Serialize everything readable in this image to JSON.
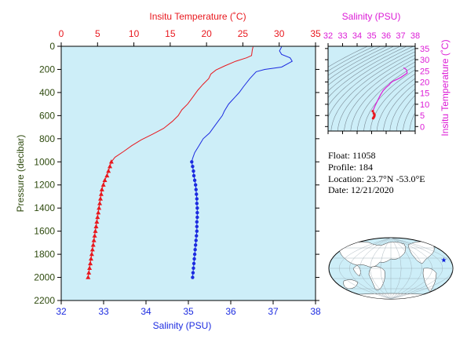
{
  "colors": {
    "temperature": "#e8181e",
    "salinity": "#1c2be0",
    "inset": "#dc1bd6",
    "axis_dark": "#2e4a0e",
    "panel_bg": "#cdeef8",
    "contour": "#7b8b96"
  },
  "chart_data": [
    {
      "type": "line",
      "title": "",
      "y_axis": {
        "label": "Pressure (decibar)",
        "range": [
          0,
          2200
        ],
        "inverted": true,
        "ticks": [
          0,
          200,
          400,
          600,
          800,
          1000,
          1200,
          1400,
          1600,
          1800,
          2000,
          2200
        ]
      },
      "x_axis_bottom": {
        "label": "Salinity (PSU)",
        "range": [
          32,
          38
        ],
        "ticks": [
          32,
          33,
          34,
          35,
          36,
          37,
          38
        ]
      },
      "x_axis_top": {
        "label": "Insitu Temperature (˚C)",
        "range": [
          0,
          35
        ],
        "ticks": [
          0,
          5,
          10,
          15,
          20,
          25,
          30,
          35
        ]
      },
      "grid": false,
      "series": [
        {
          "axis": "top",
          "marker_start_pressure": 1000,
          "marker": "triangle",
          "points": [
            [
              26.4,
              5
            ],
            [
              26.3,
              30
            ],
            [
              26.2,
              80
            ],
            [
              25.5,
              100
            ],
            [
              24.0,
              130
            ],
            [
              22.5,
              170
            ],
            [
              21.3,
              205
            ],
            [
              20.6,
              240
            ],
            [
              20.3,
              280
            ],
            [
              19.5,
              330
            ],
            [
              18.8,
              380
            ],
            [
              18.1,
              440
            ],
            [
              17.4,
              500
            ],
            [
              16.6,
              550
            ],
            [
              16.1,
              600
            ],
            [
              15.3,
              650
            ],
            [
              14.1,
              710
            ],
            [
              12.6,
              760
            ],
            [
              11.0,
              810
            ],
            [
              9.7,
              860
            ],
            [
              8.6,
              910
            ],
            [
              7.4,
              960
            ],
            [
              6.9,
              1000
            ],
            [
              6.7,
              1040
            ],
            [
              6.5,
              1080
            ],
            [
              6.3,
              1120
            ],
            [
              6.0,
              1160
            ],
            [
              5.8,
              1200
            ],
            [
              5.6,
              1240
            ],
            [
              5.5,
              1280
            ],
            [
              5.4,
              1320
            ],
            [
              5.3,
              1360
            ],
            [
              5.2,
              1400
            ],
            [
              5.1,
              1440
            ],
            [
              5.0,
              1480
            ],
            [
              4.9,
              1520
            ],
            [
              4.8,
              1560
            ],
            [
              4.7,
              1600
            ],
            [
              4.6,
              1640
            ],
            [
              4.5,
              1680
            ],
            [
              4.4,
              1720
            ],
            [
              4.3,
              1760
            ],
            [
              4.2,
              1800
            ],
            [
              4.1,
              1840
            ],
            [
              4.0,
              1880
            ],
            [
              3.9,
              1920
            ],
            [
              3.8,
              1960
            ],
            [
              3.7,
              2000
            ]
          ]
        },
        {
          "axis": "bottom",
          "marker_start_pressure": 1000,
          "marker": "dot",
          "points": [
            [
              37.2,
              5
            ],
            [
              37.15,
              40
            ],
            [
              37.2,
              70
            ],
            [
              37.4,
              100
            ],
            [
              37.45,
              130
            ],
            [
              37.2,
              180
            ],
            [
              36.8,
              200
            ],
            [
              36.6,
              220
            ],
            [
              36.45,
              280
            ],
            [
              36.3,
              350
            ],
            [
              36.2,
              400
            ],
            [
              36.1,
              440
            ],
            [
              35.95,
              500
            ],
            [
              35.85,
              560
            ],
            [
              35.8,
              600
            ],
            [
              35.7,
              650
            ],
            [
              35.6,
              700
            ],
            [
              35.5,
              750
            ],
            [
              35.35,
              800
            ],
            [
              35.25,
              860
            ],
            [
              35.15,
              920
            ],
            [
              35.1,
              970
            ],
            [
              35.08,
              1000
            ],
            [
              35.1,
              1040
            ],
            [
              35.12,
              1080
            ],
            [
              35.13,
              1120
            ],
            [
              35.15,
              1160
            ],
            [
              35.17,
              1200
            ],
            [
              35.18,
              1240
            ],
            [
              35.19,
              1280
            ],
            [
              35.2,
              1320
            ],
            [
              35.2,
              1360
            ],
            [
              35.21,
              1400
            ],
            [
              35.21,
              1440
            ],
            [
              35.21,
              1480
            ],
            [
              35.2,
              1520
            ],
            [
              35.2,
              1560
            ],
            [
              35.2,
              1600
            ],
            [
              35.19,
              1640
            ],
            [
              35.18,
              1680
            ],
            [
              35.17,
              1720
            ],
            [
              35.16,
              1760
            ],
            [
              35.15,
              1800
            ],
            [
              35.14,
              1840
            ],
            [
              35.13,
              1880
            ],
            [
              35.12,
              1920
            ],
            [
              35.11,
              1960
            ],
            [
              35.1,
              2000
            ]
          ]
        }
      ]
    },
    {
      "type": "scatter",
      "title": "",
      "x_axis": {
        "label": "Salinity (PSU)",
        "range": [
          32,
          38
        ],
        "ticks": [
          32,
          33,
          34,
          35,
          36,
          37,
          38
        ]
      },
      "y_axis": {
        "label": "Insitu Temperature (˚C)",
        "range": [
          -2,
          36
        ],
        "ticks": [
          0,
          5,
          10,
          15,
          20,
          25,
          30,
          35
        ]
      },
      "density_contours": true,
      "points": [
        [
          37.2,
          26.4
        ],
        [
          37.4,
          25.5
        ],
        [
          37.45,
          24.0
        ],
        [
          37.0,
          22.0
        ],
        [
          36.7,
          21.0
        ],
        [
          36.45,
          20.3
        ],
        [
          36.3,
          19.5
        ],
        [
          36.2,
          18.7
        ],
        [
          36.0,
          17.6
        ],
        [
          35.8,
          16.2
        ],
        [
          35.6,
          14.1
        ],
        [
          35.4,
          11.5
        ],
        [
          35.2,
          8.8
        ],
        [
          35.08,
          6.9
        ],
        [
          35.15,
          5.9
        ],
        [
          35.2,
          5.2
        ],
        [
          35.18,
          4.6
        ],
        [
          35.14,
          4.1
        ],
        [
          35.1,
          3.7
        ]
      ]
    }
  ],
  "float_info": {
    "float": "Float:  11058",
    "profile": "Profile:  184",
    "location": "Location:  23.7°N  -53.0°E",
    "date": "Date:  12/21/2020"
  },
  "map": {
    "marker_lat": 23.7,
    "marker_lon": -53.0,
    "marker_color": "#0a1bd8",
    "land_color": "#ffffff",
    "ocean_color": "#cdeef8"
  }
}
